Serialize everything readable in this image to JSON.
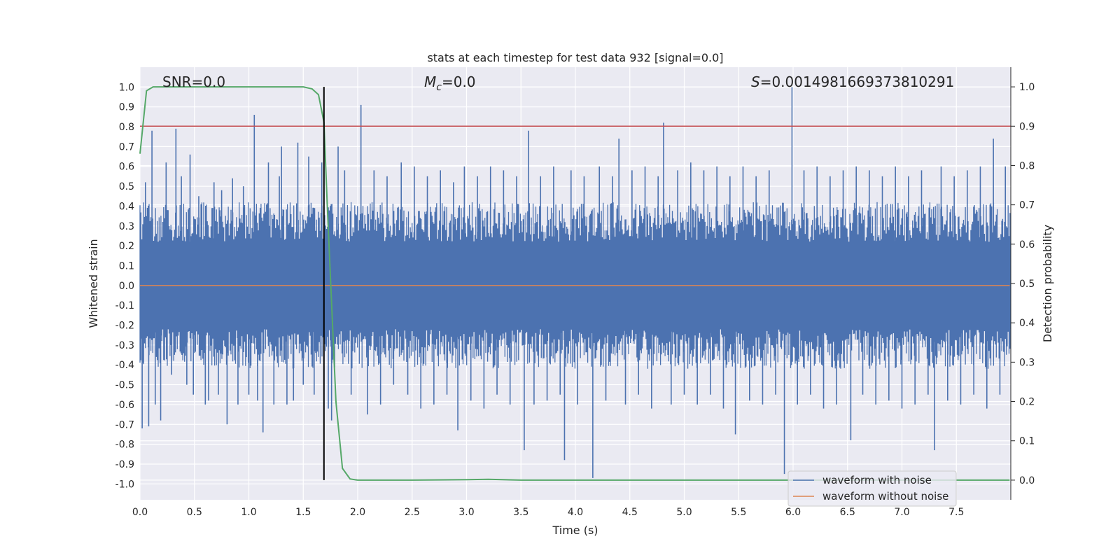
{
  "chart_data": {
    "type": "line",
    "title": "stats at each timestep for test data 932 [signal=0.0]",
    "xlabel": "Time (s)",
    "ylabel_left": "Whitened strain",
    "ylabel_right": "Detection probability",
    "xlim": [
      0.0,
      8.0
    ],
    "ylim_left": [
      -1.08,
      1.1
    ],
    "ylim_right": [
      -0.05,
      1.05
    ],
    "x_ticks": [
      "0.0",
      "0.5",
      "1.0",
      "1.5",
      "2.0",
      "2.5",
      "3.0",
      "3.5",
      "4.0",
      "4.5",
      "5.0",
      "5.5",
      "6.0",
      "6.5",
      "7.0",
      "7.5"
    ],
    "y_left_ticks": [
      "-1.0",
      "-0.9",
      "-0.8",
      "-0.7",
      "-0.6",
      "-0.5",
      "-0.4",
      "-0.3",
      "-0.2",
      "-0.1",
      "0.0",
      "0.1",
      "0.2",
      "0.3",
      "0.4",
      "0.5",
      "0.6",
      "0.7",
      "0.8",
      "0.9",
      "1.0"
    ],
    "y_right_ticks": [
      "0.0",
      "0.1",
      "0.2",
      "0.3",
      "0.4",
      "0.5",
      "0.6",
      "0.7",
      "0.8",
      "0.9",
      "1.0"
    ],
    "grid": true,
    "legend_position": "bottom-right",
    "annotations": {
      "snr": "SNR=0.0",
      "mc_symbol": "M",
      "mc_sub": "c",
      "mc_value": "=0.0",
      "s_symbol": "S",
      "s_value": "=0.0014981669373810291"
    },
    "threshold_line": {
      "axis": "right",
      "y": 0.9,
      "color": "#c44e52"
    },
    "vertical_marker": {
      "x": 1.69,
      "color": "#000000"
    },
    "series": [
      {
        "name": "waveform with noise",
        "axis": "left",
        "color": "#4c72b0",
        "envelope_band": [
          -0.4,
          0.4
        ],
        "spikes": [
          [
            0.02,
            -0.72
          ],
          [
            0.05,
            0.52
          ],
          [
            0.08,
            -0.71
          ],
          [
            0.11,
            0.78
          ],
          [
            0.14,
            -0.6
          ],
          [
            0.19,
            -0.68
          ],
          [
            0.24,
            0.62
          ],
          [
            0.29,
            -0.45
          ],
          [
            0.33,
            0.79
          ],
          [
            0.38,
            0.55
          ],
          [
            0.43,
            -0.5
          ],
          [
            0.46,
            0.66
          ],
          [
            0.49,
            -0.55
          ],
          [
            0.54,
            0.45
          ],
          [
            0.6,
            -0.6
          ],
          [
            0.63,
            -0.58
          ],
          [
            0.68,
            0.52
          ],
          [
            0.72,
            -0.55
          ],
          [
            0.75,
            0.48
          ],
          [
            0.8,
            -0.7
          ],
          [
            0.85,
            0.54
          ],
          [
            0.9,
            -0.6
          ],
          [
            0.95,
            0.5
          ],
          [
            1.0,
            -0.55
          ],
          [
            1.05,
            0.86
          ],
          [
            1.08,
            -0.58
          ],
          [
            1.13,
            -0.74
          ],
          [
            1.18,
            0.62
          ],
          [
            1.23,
            -0.6
          ],
          [
            1.28,
            0.55
          ],
          [
            1.3,
            0.7
          ],
          [
            1.35,
            -0.6
          ],
          [
            1.41,
            -0.58
          ],
          [
            1.45,
            0.72
          ],
          [
            1.5,
            -0.5
          ],
          [
            1.55,
            0.65
          ],
          [
            1.6,
            -0.55
          ],
          [
            1.67,
            0.62
          ],
          [
            1.73,
            -0.62
          ],
          [
            1.76,
            -0.68
          ],
          [
            1.82,
            0.7
          ],
          [
            1.88,
            0.58
          ],
          [
            1.94,
            -0.55
          ],
          [
            2.03,
            0.91
          ],
          [
            2.09,
            -0.65
          ],
          [
            2.15,
            0.58
          ],
          [
            2.21,
            -0.6
          ],
          [
            2.27,
            0.55
          ],
          [
            2.33,
            -0.5
          ],
          [
            2.4,
            0.62
          ],
          [
            2.46,
            -0.55
          ],
          [
            2.52,
            0.6
          ],
          [
            2.58,
            -0.62
          ],
          [
            2.64,
            0.55
          ],
          [
            2.7,
            -0.6
          ],
          [
            2.76,
            0.58
          ],
          [
            2.82,
            -0.55
          ],
          [
            2.88,
            0.52
          ],
          [
            2.92,
            -0.73
          ],
          [
            2.98,
            0.6
          ],
          [
            3.04,
            -0.58
          ],
          [
            3.1,
            0.55
          ],
          [
            3.16,
            -0.62
          ],
          [
            3.22,
            0.6
          ],
          [
            3.28,
            -0.55
          ],
          [
            3.34,
            0.58
          ],
          [
            3.4,
            -0.6
          ],
          [
            3.46,
            0.55
          ],
          [
            3.53,
            -0.83
          ],
          [
            3.57,
            0.78
          ],
          [
            3.62,
            -0.6
          ],
          [
            3.68,
            0.55
          ],
          [
            3.74,
            -0.58
          ],
          [
            3.8,
            0.6
          ],
          [
            3.86,
            -0.55
          ],
          [
            3.9,
            -0.88
          ],
          [
            3.96,
            0.58
          ],
          [
            4.02,
            -0.6
          ],
          [
            4.08,
            0.55
          ],
          [
            4.16,
            -0.97
          ],
          [
            4.22,
            0.6
          ],
          [
            4.28,
            -0.58
          ],
          [
            4.34,
            0.55
          ],
          [
            4.4,
            0.74
          ],
          [
            4.46,
            -0.6
          ],
          [
            4.52,
            0.58
          ],
          [
            4.58,
            -0.55
          ],
          [
            4.64,
            0.6
          ],
          [
            4.7,
            -0.62
          ],
          [
            4.76,
            0.55
          ],
          [
            4.81,
            0.82
          ],
          [
            4.88,
            -0.6
          ],
          [
            4.94,
            0.58
          ],
          [
            5.0,
            -0.55
          ],
          [
            5.06,
            0.62
          ],
          [
            5.12,
            -0.6
          ],
          [
            5.18,
            0.58
          ],
          [
            5.24,
            -0.55
          ],
          [
            5.3,
            0.6
          ],
          [
            5.36,
            -0.62
          ],
          [
            5.42,
            0.55
          ],
          [
            5.47,
            -0.75
          ],
          [
            5.54,
            0.6
          ],
          [
            5.6,
            -0.58
          ],
          [
            5.66,
            0.55
          ],
          [
            5.72,
            -0.6
          ],
          [
            5.78,
            0.58
          ],
          [
            5.84,
            -0.55
          ],
          [
            5.92,
            -0.95
          ],
          [
            5.99,
            1.0
          ],
          [
            6.04,
            -0.6
          ],
          [
            6.1,
            0.58
          ],
          [
            6.16,
            -0.55
          ],
          [
            6.22,
            0.6
          ],
          [
            6.28,
            -0.62
          ],
          [
            6.34,
            0.55
          ],
          [
            6.4,
            -0.6
          ],
          [
            6.46,
            0.58
          ],
          [
            6.53,
            -0.78
          ],
          [
            6.58,
            0.6
          ],
          [
            6.64,
            -0.55
          ],
          [
            6.7,
            0.58
          ],
          [
            6.76,
            -0.6
          ],
          [
            6.82,
            0.55
          ],
          [
            6.88,
            -0.58
          ],
          [
            6.94,
            0.6
          ],
          [
            7.0,
            -0.62
          ],
          [
            7.06,
            0.55
          ],
          [
            7.12,
            -0.6
          ],
          [
            7.18,
            0.58
          ],
          [
            7.24,
            -0.55
          ],
          [
            7.3,
            -0.83
          ],
          [
            7.36,
            0.6
          ],
          [
            7.42,
            -0.58
          ],
          [
            7.48,
            0.55
          ],
          [
            7.54,
            -0.6
          ],
          [
            7.6,
            0.58
          ],
          [
            7.66,
            -0.55
          ],
          [
            7.72,
            0.6
          ],
          [
            7.78,
            -0.62
          ],
          [
            7.84,
            0.74
          ],
          [
            7.9,
            -0.55
          ],
          [
            7.95,
            0.6
          ]
        ]
      },
      {
        "name": "waveform without noise",
        "axis": "left",
        "color": "#dd8452",
        "x": [
          0.0,
          7.99
        ],
        "y": [
          0.0,
          0.0
        ]
      },
      {
        "name": "detection probability",
        "axis": "right",
        "color": "#55a868",
        "x": [
          0.0,
          0.06,
          0.12,
          0.3,
          0.6,
          1.0,
          1.3,
          1.5,
          1.58,
          1.64,
          1.69,
          1.72,
          1.76,
          1.8,
          1.86,
          1.93,
          2.0,
          2.5,
          3.0,
          3.2,
          3.5,
          4.0,
          5.0,
          6.0,
          7.0,
          7.99
        ],
        "y": [
          0.83,
          0.99,
          1.0,
          1.0,
          1.0,
          1.0,
          1.0,
          1.0,
          0.995,
          0.98,
          0.91,
          0.7,
          0.45,
          0.2,
          0.03,
          0.003,
          0.0,
          0.0,
          0.001,
          0.002,
          0.0,
          0.0,
          0.0,
          0.0,
          0.0,
          0.0
        ]
      }
    ]
  }
}
